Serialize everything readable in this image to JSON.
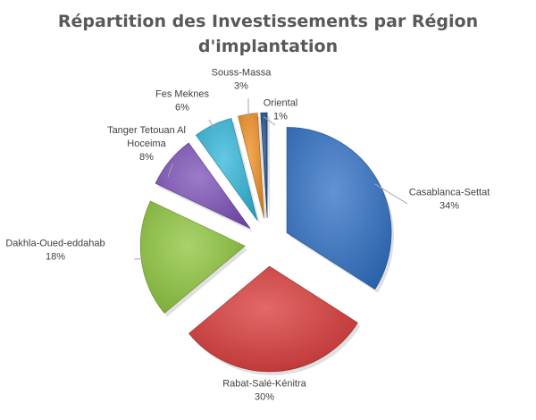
{
  "chart_data": {
    "type": "pie",
    "exploded": true,
    "title_lines": [
      "Répartition des Investissements par Région",
      "d'implantation"
    ],
    "slices": [
      {
        "label": "Casablanca-Settat",
        "display_label": [
          "Casablanca-Settat"
        ],
        "percent_label": "34%",
        "value": 34,
        "color": "#2e6fc4"
      },
      {
        "label": "Rabat-Salé-Kénitra",
        "display_label": [
          "Rabat-Salé-Kénitra"
        ],
        "percent_label": "30%",
        "value": 30,
        "color": "#d93636"
      },
      {
        "label": "Dakhla-Oued-eddahab",
        "display_label": [
          "Dakhla-Oued-eddahab"
        ],
        "percent_label": "18%",
        "value": 18,
        "color": "#8cc43a"
      },
      {
        "label": "Tanger Tetouan Al Hoceima",
        "display_label": [
          "Tanger Tetouan Al",
          "Hoceima"
        ],
        "percent_label": "8%",
        "value": 8,
        "color": "#7b4fb8"
      },
      {
        "label": "Fes Meknes",
        "display_label": [
          "Fes Meknes"
        ],
        "percent_label": "6%",
        "value": 6,
        "color": "#2fb5d9"
      },
      {
        "label": "Souss-Massa",
        "display_label": [
          "Souss-Massa"
        ],
        "percent_label": "3%",
        "value": 3,
        "color": "#f08c1e"
      },
      {
        "label": "Oriental",
        "display_label": [
          "Oriental"
        ],
        "percent_label": "1%",
        "value": 1,
        "color": "#1f4e8c"
      }
    ],
    "legend": "none",
    "data_labels": "outside-with-leader-lines"
  }
}
